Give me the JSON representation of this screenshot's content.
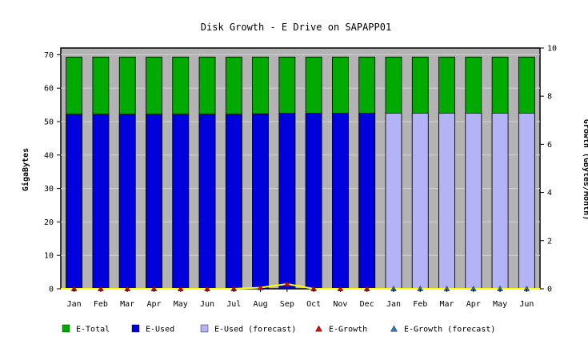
{
  "chart_data": {
    "type": "bar",
    "title": "Disk Growth - E Drive on SAPAPP01",
    "ylabel": "GigaBytes",
    "y2label": "Growth (GBytes/Month)",
    "ylim": [
      0,
      72
    ],
    "y2lim": [
      0,
      10
    ],
    "y_ticks": [
      0,
      10,
      20,
      30,
      40,
      50,
      60,
      70
    ],
    "y2_ticks": [
      0,
      2,
      4,
      6,
      8,
      10
    ],
    "categories": [
      "Jan",
      "Feb",
      "Mar",
      "Apr",
      "May",
      "Jun",
      "Jul",
      "Aug",
      "Sep",
      "Oct",
      "Nov",
      "Dec",
      "Jan",
      "Feb",
      "Mar",
      "Apr",
      "May",
      "Jun"
    ],
    "series": [
      {
        "name": "E-Total",
        "kind": "bar",
        "color": "#00aa00",
        "values": [
          69.3,
          69.3,
          69.3,
          69.3,
          69.3,
          69.3,
          69.3,
          69.3,
          69.3,
          69.3,
          69.3,
          69.3,
          69.3,
          69.3,
          69.3,
          69.3,
          69.3,
          69.3
        ]
      },
      {
        "name": "E-Used",
        "kind": "bar",
        "color": "#0000dd",
        "values": [
          52.2,
          52.2,
          52.2,
          52.2,
          52.2,
          52.2,
          52.2,
          52.3,
          52.5,
          52.5,
          52.5,
          52.5,
          null,
          null,
          null,
          null,
          null,
          null
        ]
      },
      {
        "name": "E-Used (forecast)",
        "kind": "bar",
        "color": "#b3b3f5",
        "values": [
          null,
          null,
          null,
          null,
          null,
          null,
          null,
          null,
          null,
          null,
          null,
          null,
          52.5,
          52.5,
          52.5,
          52.5,
          52.5,
          52.5
        ]
      },
      {
        "name": "E-Growth",
        "kind": "line",
        "axis": "right",
        "color": "#ee0000",
        "line_color": "#ffff00",
        "values": [
          0,
          0,
          0,
          0,
          0,
          0,
          0,
          0.05,
          0.2,
          0,
          0,
          0,
          null,
          null,
          null,
          null,
          null,
          null
        ]
      },
      {
        "name": "E-Growth (forecast)",
        "kind": "line",
        "axis": "right",
        "color": "#3377bb",
        "line_color": "#ffff00",
        "values": [
          null,
          null,
          null,
          null,
          null,
          null,
          null,
          null,
          null,
          null,
          null,
          null,
          0,
          0,
          0,
          0,
          0,
          0
        ]
      }
    ],
    "plot_background": "#b3b3b3",
    "grid": true,
    "legend_position": "bottom"
  }
}
